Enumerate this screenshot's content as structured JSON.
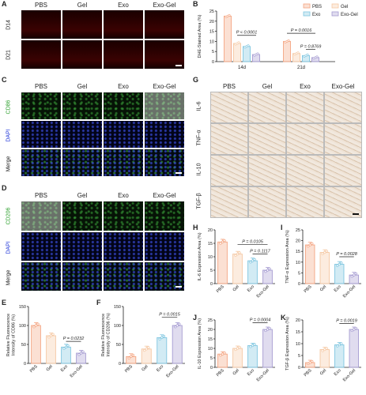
{
  "panels": {
    "A": {
      "label": "A",
      "columns": [
        "PBS",
        "Gel",
        "Exo",
        "Exo-Gel"
      ],
      "rows": [
        "D14",
        "D21"
      ]
    },
    "B": {
      "label": "B"
    },
    "C": {
      "label": "C",
      "columns": [
        "PBS",
        "Gel",
        "Exo",
        "Exo-Gel"
      ],
      "rows": [
        "CD86",
        "DAPI",
        "Merge"
      ]
    },
    "D": {
      "label": "D",
      "columns": [
        "PBS",
        "Gel",
        "Exo",
        "Exo-Gel"
      ],
      "rows": [
        "CD206",
        "DAPI",
        "Merge"
      ]
    },
    "E": {
      "label": "E"
    },
    "F": {
      "label": "F"
    },
    "G": {
      "label": "G",
      "columns": [
        "PBS",
        "Gel",
        "Exo",
        "Exo-Gel"
      ],
      "rows": [
        "IL-6",
        "TNF-α",
        "IL-10",
        "TGF-β"
      ]
    },
    "H": {
      "label": "H"
    },
    "I": {
      "label": "I"
    },
    "J": {
      "label": "J"
    },
    "K": {
      "label": "K"
    }
  },
  "colors": {
    "PBS": "#f4a582",
    "Gel": "#f5c8a3",
    "Exo": "#7fc6e0",
    "ExoGel": "#a59bd1",
    "cd86": "#2ca02c",
    "cd206": "#2ca02c",
    "dapi": "#2036d8"
  },
  "chart_data": [
    {
      "id": "B",
      "type": "bar",
      "categories": [
        "14d",
        "21d"
      ],
      "series": [
        {
          "name": "PBS",
          "values": [
            22.5,
            10.0
          ]
        },
        {
          "name": "Gel",
          "values": [
            9.0,
            4.0
          ]
        },
        {
          "name": "Exo",
          "values": [
            7.5,
            3.0
          ]
        },
        {
          "name": "Exo-Gel",
          "values": [
            3.5,
            2.0
          ]
        }
      ],
      "ylabel": "DHE-Stained Area (%)",
      "ylim": [
        0,
        25
      ],
      "yticks": [
        "0",
        "5",
        "10",
        "15",
        "20",
        "25"
      ],
      "annotations": [
        "P < 0.0001",
        "P = 0.0016",
        "P = 0.8769"
      ],
      "legend": [
        "PBS",
        "Gel",
        "Exo",
        "Exo-Gel"
      ]
    },
    {
      "id": "E",
      "type": "bar",
      "categories": [
        "PBS",
        "Gel",
        "Exo",
        "Exo-Gel"
      ],
      "values": [
        100,
        73,
        43,
        27
      ],
      "ylabel": "Relative Fluorescence\nIntensity of CD86 (%)",
      "ylim": [
        0,
        150
      ],
      "yticks": [
        "0",
        "50",
        "100",
        "150"
      ],
      "annotations": [
        "P = 0.0232"
      ]
    },
    {
      "id": "F",
      "type": "bar",
      "categories": [
        "PBS",
        "Gel",
        "Exo",
        "Exo-Gel"
      ],
      "values": [
        18,
        38,
        68,
        100
      ],
      "ylabel": "Relative Fluorescence\nIntensity of CD206 (%)",
      "ylim": [
        0,
        150
      ],
      "yticks": [
        "0",
        "50",
        "100",
        "150"
      ],
      "annotations": [
        "P = 0.0015"
      ]
    },
    {
      "id": "H",
      "type": "bar",
      "categories": [
        "PBS",
        "Gel",
        "Exo",
        "Exo-Gel"
      ],
      "values": [
        15.5,
        11,
        8.5,
        5
      ],
      "ylabel": "IL-6 Expression Area (%)",
      "ylim": [
        0,
        20
      ],
      "yticks": [
        "0",
        "5",
        "10",
        "15",
        "20"
      ],
      "annotations": [
        "P = 0.0105",
        "P = 0.1117"
      ]
    },
    {
      "id": "I",
      "type": "bar",
      "categories": [
        "PBS",
        "Gel",
        "Exo",
        "Exo-Gel"
      ],
      "values": [
        18,
        14.5,
        9,
        4
      ],
      "ylabel": "TNF-α Expression Area (%)",
      "ylim": [
        0,
        25
      ],
      "yticks": [
        "0",
        "5",
        "10",
        "15",
        "20",
        "25"
      ],
      "annotations": [
        "P = 0.0028"
      ]
    },
    {
      "id": "J",
      "type": "bar",
      "categories": [
        "PBS",
        "Gel",
        "Exo",
        "Exo-Gel"
      ],
      "values": [
        7,
        10,
        11.5,
        20
      ],
      "ylabel": "IL-10 Expression Area (%)",
      "ylim": [
        0,
        25
      ],
      "yticks": [
        "0",
        "5",
        "10",
        "15",
        "20",
        "25"
      ],
      "annotations": [
        "P = 0.0004"
      ]
    },
    {
      "id": "K",
      "type": "bar",
      "categories": [
        "PBS",
        "Gel",
        "Exo",
        "Exo-Gel"
      ],
      "values": [
        2,
        7.5,
        9.5,
        16
      ],
      "ylabel": "TGF-β Expression Area (%)",
      "ylim": [
        0,
        20
      ],
      "yticks": [
        "0",
        "5",
        "10",
        "15",
        "20"
      ],
      "annotations": [
        "P = 0.0019"
      ]
    }
  ]
}
